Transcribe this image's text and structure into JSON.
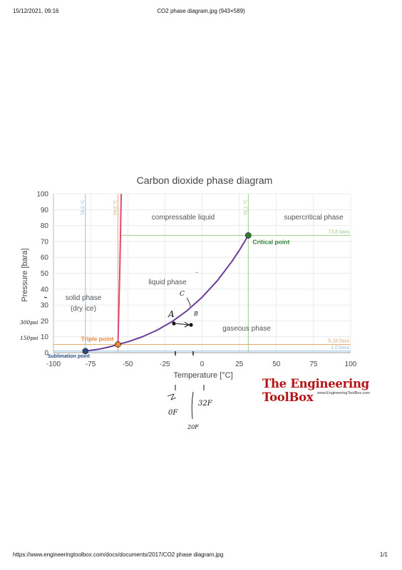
{
  "page": {
    "header_datetime": "15/12/2021, 09:16",
    "header_title": "CO2 phase diagram.jpg (943×589)",
    "footer_url": "https://www.engineeringtoolbox.com/docs/documents/2017/CO2 phase diagram.jpg",
    "footer_page": "1/1"
  },
  "brand": {
    "name": "The Engineering ToolBox",
    "url": "www.EngineeringToolBox.com",
    "color": "#b31417"
  },
  "chart_data": {
    "type": "line",
    "title": "Carbon dioxide phase diagram",
    "xlabel": "Temperature [°C]",
    "ylabel": "Pressure [bara]",
    "xlim": [
      -100,
      100
    ],
    "ylim": [
      0,
      100
    ],
    "x_ticks": [
      "-100",
      "-75",
      "-50",
      "-25",
      "0",
      "25",
      "50",
      "75",
      "100"
    ],
    "y_ticks": [
      "0",
      "10",
      "20",
      "30",
      "40",
      "50",
      "60",
      "70",
      "80",
      "90",
      "100"
    ],
    "grid": true,
    "series": [
      {
        "role": "vapor-pressure curve",
        "color": "#6a3d9a",
        "x": [
          -78.5,
          -75,
          -70,
          -65,
          -60,
          -56.6,
          -50,
          -40,
          -30,
          -20,
          -10,
          0,
          10,
          20,
          25,
          31.1
        ],
        "y": [
          1.0,
          1.5,
          2.1,
          3.1,
          4.2,
          5.18,
          6.8,
          10.1,
          14.3,
          19.7,
          26.5,
          34.9,
          45.0,
          57.3,
          64.3,
          73.8
        ]
      },
      {
        "role": "melting curve",
        "color": "#e0457b",
        "x": [
          -56.6,
          -55.4,
          -54.4
        ],
        "y": [
          5.18,
          50,
          100
        ]
      }
    ],
    "reference_lines": {
      "vertical": [
        {
          "x": -78.5,
          "label": "78.5 °C",
          "color": "#8fc1e3"
        },
        {
          "x": -56.6,
          "label": "56.6 °C",
          "color": "#e8a86b"
        },
        {
          "x": 31.1,
          "label": "31.1 °C",
          "color": "#9ccc8a"
        }
      ],
      "horizontal": [
        {
          "y": 73.8,
          "label": "73.8 bara",
          "color": "#9ccc8a"
        },
        {
          "y": 5.18,
          "label": "5.18 bara",
          "color": "#e8a86b"
        },
        {
          "y": 1.0,
          "label": "1.0 bara",
          "color": "#8fc1e3"
        }
      ]
    },
    "points": [
      {
        "label": "Sublimation point",
        "x": -78.5,
        "y": 1.0,
        "color": "#2b4c7e"
      },
      {
        "label": "Triple point",
        "x": -56.6,
        "y": 5.18,
        "color": "#e8863c"
      },
      {
        "label": "Critical point",
        "x": 31.1,
        "y": 73.8,
        "color": "#2e7d32"
      }
    ],
    "region_labels": {
      "compressable_liquid": "compressable liquid",
      "supercritical": "supercritical phase",
      "liquid": "liquid phase",
      "solid": "solid phase",
      "dry_ice": "(dry ice)",
      "gaseous": "gaseous phase"
    },
    "annotations": {
      "point_a": "A",
      "point_b": "B",
      "point_c": "C",
      "y20": "300psi",
      "y10": "150psi",
      "note1": "0F",
      "note2": "32F",
      "note3": "20F"
    }
  }
}
